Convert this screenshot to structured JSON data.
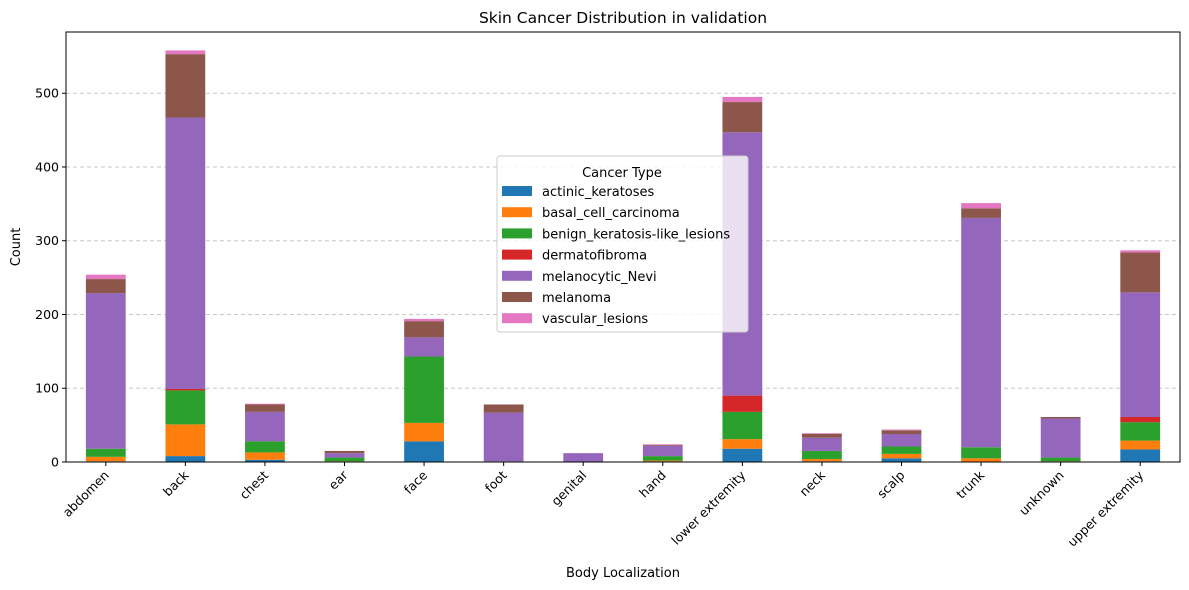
{
  "chart_data": {
    "type": "bar",
    "stacked": true,
    "title": "Skin Cancer Distribution in validation",
    "xlabel": "Body Localization",
    "ylabel": "Count",
    "ylim": [
      0,
      583
    ],
    "yticks": [
      0,
      100,
      200,
      300,
      400,
      500
    ],
    "grid": "y-dashed",
    "legend_title": "Cancer Type",
    "legend_position": "center",
    "categories": [
      "abdomen",
      "back",
      "chest",
      "ear",
      "face",
      "foot",
      "genital",
      "hand",
      "lower extremity",
      "neck",
      "scalp",
      "trunk",
      "unknown",
      "upper extremity"
    ],
    "series": [
      {
        "name": "actinic_keratoses",
        "color": "#1f77b4",
        "values": [
          1,
          8,
          3,
          0,
          28,
          0,
          0,
          1,
          18,
          1,
          5,
          0,
          0,
          17
        ]
      },
      {
        "name": "basal_cell_carcinoma",
        "color": "#ff7f0e",
        "values": [
          6,
          43,
          10,
          1,
          25,
          0,
          0,
          1,
          13,
          3,
          6,
          5,
          1,
          12
        ]
      },
      {
        "name": "benign_keratosis-like_lesions",
        "color": "#2ca02c",
        "values": [
          11,
          46,
          15,
          5,
          90,
          1,
          0,
          6,
          37,
          11,
          10,
          15,
          5,
          25
        ]
      },
      {
        "name": "dermatofibroma",
        "color": "#d62728",
        "values": [
          0,
          2,
          0,
          0,
          0,
          0,
          0,
          0,
          22,
          0,
          0,
          0,
          0,
          7
        ]
      },
      {
        "name": "melanocytic_Nevi",
        "color": "#9467bd",
        "values": [
          211,
          368,
          40,
          6,
          26,
          66,
          12,
          14,
          357,
          18,
          17,
          311,
          53,
          169
        ]
      },
      {
        "name": "melanoma",
        "color": "#8c564b",
        "values": [
          19,
          86,
          10,
          3,
          22,
          11,
          0,
          1,
          41,
          5,
          5,
          13,
          2,
          54
        ]
      },
      {
        "name": "vascular_lesions",
        "color": "#e377c2",
        "values": [
          6,
          5,
          1,
          0,
          3,
          0,
          0,
          1,
          7,
          1,
          1,
          7,
          0,
          3
        ]
      }
    ]
  }
}
